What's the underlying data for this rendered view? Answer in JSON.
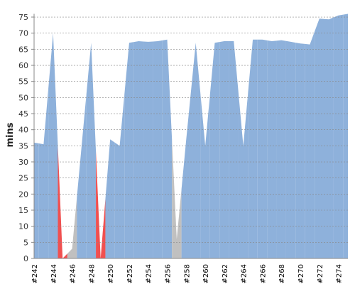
{
  "chart_data": {
    "type": "area",
    "y_label": "mins",
    "categories": [
      "#242",
      null,
      "#244",
      null,
      "#246",
      null,
      "#248",
      null,
      "#250",
      null,
      "#252",
      null,
      "#254",
      null,
      "#256",
      null,
      "#258",
      null,
      "#260",
      null,
      "#262",
      null,
      "#264",
      null,
      "#266",
      null,
      "#268",
      null,
      "#270",
      null,
      "#272",
      null,
      "#274",
      null
    ],
    "values": [
      36,
      35.5,
      70,
      0,
      3,
      35,
      67,
      0,
      37,
      35,
      67,
      67.5,
      67.3,
      67.5,
      68,
      6,
      37,
      67,
      35,
      67,
      67.5,
      67.5,
      35,
      68,
      68,
      67.5,
      67.8,
      67.3,
      66.8,
      66.5,
      74.5,
      74.3,
      75.5,
      76
    ],
    "point_colors": [
      "#8eb1db",
      "#8eb1db",
      "#8eb1db",
      "#f05050",
      "#c0c0c0",
      "#8eb1db",
      "#8eb1db",
      "#f05050",
      "#8eb1db",
      "#8eb1db",
      "#8eb1db",
      "#8eb1db",
      "#8eb1db",
      "#8eb1db",
      "#8eb1db",
      "#c0c0c0",
      "#8eb1db",
      "#8eb1db",
      "#8eb1db",
      "#8eb1db",
      "#8eb1db",
      "#8eb1db",
      "#8eb1db",
      "#8eb1db",
      "#8eb1db",
      "#8eb1db",
      "#8eb1db",
      "#8eb1db",
      "#8eb1db",
      "#8eb1db",
      "#8eb1db",
      "#8eb1db",
      "#8eb1db",
      "#8eb1db"
    ],
    "ylim": [
      0,
      76
    ],
    "yticks": [
      0,
      5,
      10,
      15,
      20,
      25,
      30,
      35,
      40,
      45,
      50,
      55,
      60,
      65,
      70,
      75
    ],
    "grid": true
  }
}
